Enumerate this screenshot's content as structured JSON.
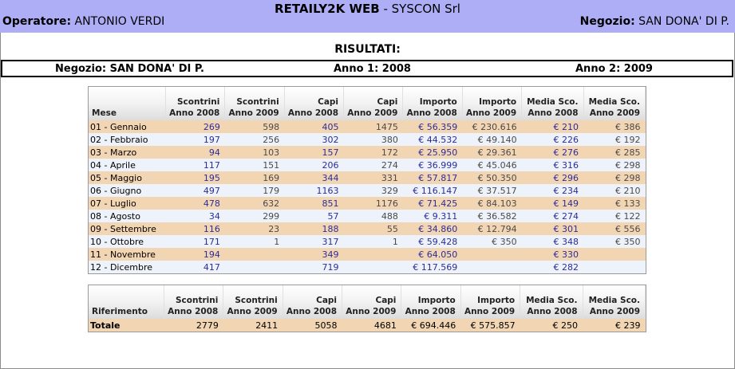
{
  "header": {
    "app_name": "RETAILY2K WEB",
    "company": " - SYSCON Srl",
    "operator_label": "Operatore:",
    "operator_name": " ANTONIO VERDI",
    "store_label": "Negozio:",
    "store_name": " SAN DONA' DI P.",
    "color": "#aeaef7"
  },
  "results_title": "RISULTATI:",
  "info_bar": {
    "store": "Negozio: SAN DONA' DI P.",
    "year1": "Anno 1: 2008",
    "year2": "Anno 2: 2009"
  },
  "monthly_table": {
    "headers": [
      [
        "",
        "Mese"
      ],
      [
        "Scontrini",
        "Anno 2008"
      ],
      [
        "Scontrini",
        "Anno 2009"
      ],
      [
        "Capi",
        "Anno 2008"
      ],
      [
        "Capi",
        "Anno 2009"
      ],
      [
        "Importo",
        "Anno 2008"
      ],
      [
        "Importo",
        "Anno 2009"
      ],
      [
        "Media Sco.",
        "Anno 2008"
      ],
      [
        "Media Sco.",
        "Anno 2009"
      ]
    ],
    "rows": [
      [
        "01 - Gennaio",
        "269",
        "598",
        "405",
        "1475",
        "€ 56.359",
        "€ 230.616",
        "€ 210",
        "€ 386"
      ],
      [
        "02 - Febbraio",
        "197",
        "256",
        "302",
        "380",
        "€ 44.532",
        "€ 49.140",
        "€ 226",
        "€ 192"
      ],
      [
        "03 - Marzo",
        "94",
        "103",
        "157",
        "172",
        "€ 25.950",
        "€ 29.361",
        "€ 276",
        "€ 285"
      ],
      [
        "04 - Aprile",
        "117",
        "151",
        "206",
        "274",
        "€ 36.999",
        "€ 45.046",
        "€ 316",
        "€ 298"
      ],
      [
        "05 - Maggio",
        "195",
        "169",
        "344",
        "331",
        "€ 57.817",
        "€ 50.350",
        "€ 296",
        "€ 298"
      ],
      [
        "06 - Giugno",
        "497",
        "179",
        "1163",
        "329",
        "€ 116.147",
        "€ 37.517",
        "€ 234",
        "€ 210"
      ],
      [
        "07 - Luglio",
        "478",
        "632",
        "851",
        "1176",
        "€ 71.425",
        "€ 84.103",
        "€ 149",
        "€ 133"
      ],
      [
        "08 - Agosto",
        "34",
        "299",
        "57",
        "488",
        "€ 9.311",
        "€ 36.582",
        "€ 274",
        "€ 122"
      ],
      [
        "09 - Settembre",
        "116",
        "23",
        "188",
        "55",
        "€ 34.860",
        "€ 12.794",
        "€ 301",
        "€ 556"
      ],
      [
        "10 - Ottobre",
        "171",
        "1",
        "317",
        "1",
        "€ 59.428",
        "€ 350",
        "€ 348",
        "€ 350"
      ],
      [
        "11 - Novembre",
        "194",
        "",
        "349",
        "",
        "€ 64.050",
        "",
        "€ 330",
        ""
      ],
      [
        "12 - Dicembre",
        "417",
        "",
        "719",
        "",
        "€ 117.569",
        "",
        "€ 282",
        ""
      ]
    ]
  },
  "totals_table": {
    "headers": [
      [
        "",
        "Riferimento"
      ],
      [
        "Scontrini",
        "Anno 2008"
      ],
      [
        "Scontrini",
        "Anno 2009"
      ],
      [
        "Capi",
        "Anno 2008"
      ],
      [
        "Capi",
        "Anno 2009"
      ],
      [
        "Importo",
        "Anno 2008"
      ],
      [
        "Importo",
        "Anno 2009"
      ],
      [
        "Media Sco.",
        "Anno 2008"
      ],
      [
        "Media Sco.",
        "Anno 2009"
      ]
    ],
    "rows": [
      [
        "Totale",
        "2779",
        "2411",
        "5058",
        "4681",
        "€ 694.446",
        "€ 575.857",
        "€ 250",
        "€ 239"
      ]
    ]
  },
  "colors": {
    "row_odd": "#f2d6b4",
    "row_even": "#eef3fb",
    "value_2008": "#2c2c9a",
    "value_2009": "#4a4a4a"
  }
}
